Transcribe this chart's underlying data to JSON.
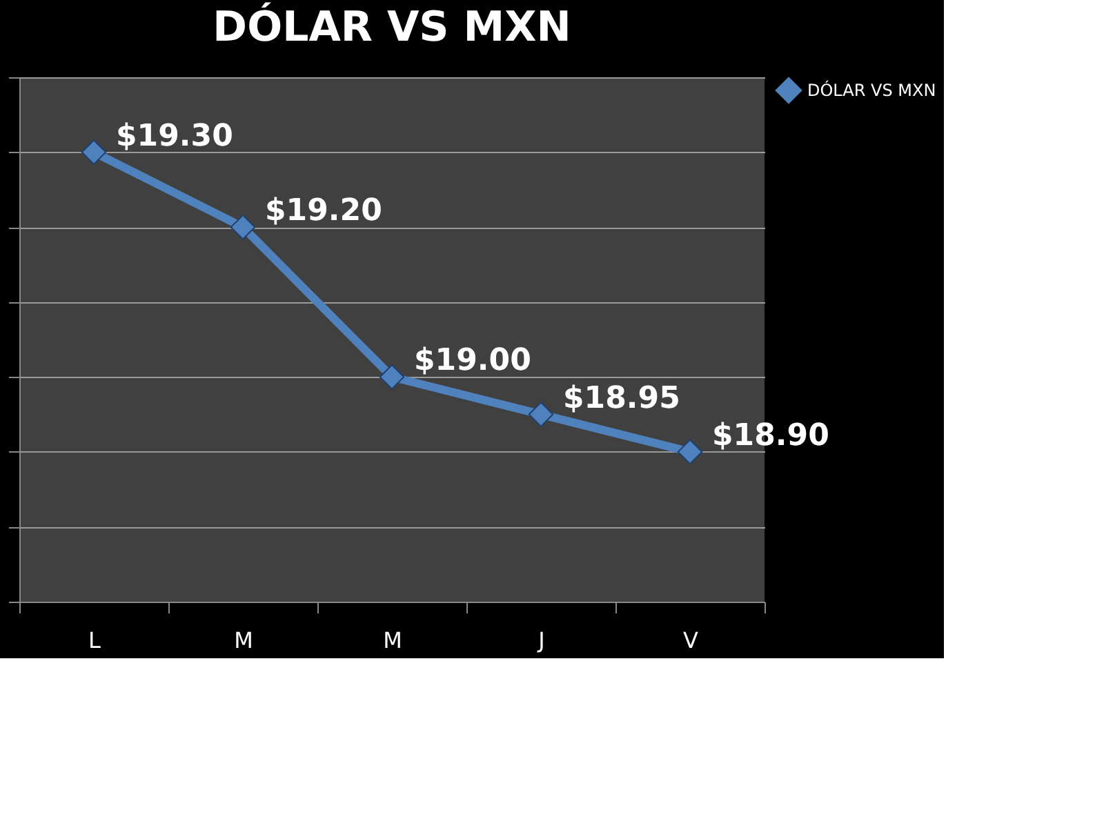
{
  "chart_data": {
    "type": "line",
    "title": "DÓLAR VS MXN",
    "categories": [
      "L",
      "M",
      "M",
      "J",
      "V"
    ],
    "series": [
      {
        "name": "DÓLAR VS MXN",
        "color": "#4f81bd",
        "values": [
          19.3,
          19.2,
          19.0,
          18.95,
          18.9
        ],
        "value_labels": [
          "$19.30",
          "$19.20",
          "$19.00",
          "$18.95",
          "$18.90"
        ]
      }
    ],
    "ylim": [
      18.7,
      19.4
    ],
    "yticks": [
      {
        "value": 18.7,
        "label": null
      },
      {
        "value": 18.8,
        "label": null
      },
      {
        "value": 18.9,
        "label": null
      },
      {
        "value": 19.0,
        "label": null
      },
      {
        "value": 19.1,
        "label": null
      },
      {
        "value": 19.2,
        "label": null
      },
      {
        "value": 19.3,
        "label": null
      },
      {
        "value": 19.4,
        "label": null
      }
    ],
    "tick_labels": "x",
    "grid": "y",
    "legend": "right",
    "marker": "diamond",
    "line_style": "solid"
  }
}
